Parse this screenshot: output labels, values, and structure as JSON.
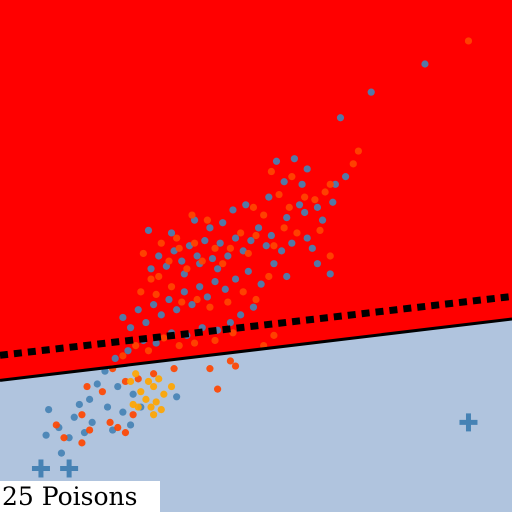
{
  "caption": "25 Poisons",
  "colors": {
    "region_positive": "#ff0000",
    "region_negative": "#b0c4de",
    "class_blue": "#4682b4",
    "class_orange": "#ff4500",
    "class_gold": "#ffa500",
    "boundary_clean": "#000000",
    "boundary_poisoned": "#000000"
  },
  "chart_data": {
    "type": "scatter",
    "title": "",
    "xlabel": "",
    "ylabel": "",
    "xlim": [
      0,
      10
    ],
    "ylim": [
      0,
      10
    ],
    "grid": false,
    "legend": "none",
    "regions": [
      {
        "label": "upper",
        "color_key": "region_positive"
      },
      {
        "label": "lower",
        "color_key": "region_negative"
      }
    ],
    "boundaries": [
      {
        "style": "solid",
        "y_at_xmin": 2.57,
        "y_at_xmax": 3.77
      },
      {
        "style": "dashed",
        "y_at_xmin": 3.06,
        "y_at_xmax": 4.21
      }
    ],
    "series": [
      {
        "color_key": "class_blue",
        "marker": "circle",
        "points": [
          [
            8.3,
            8.75
          ],
          [
            7.25,
            8.2
          ],
          [
            6.65,
            7.7
          ],
          [
            5.9,
            6.4
          ],
          [
            6.75,
            6.55
          ],
          [
            6.5,
            6.05
          ],
          [
            5.4,
            6.85
          ],
          [
            5.85,
            6.0
          ],
          [
            6.2,
            5.95
          ],
          [
            6.3,
            5.7
          ],
          [
            5.6,
            5.75
          ],
          [
            6.0,
            5.35
          ],
          [
            5.7,
            5.25
          ],
          [
            6.1,
            5.15
          ],
          [
            5.3,
            5.4
          ],
          [
            5.5,
            5.1
          ],
          [
            5.2,
            5.2
          ],
          [
            5.05,
            5.55
          ],
          [
            4.9,
            5.3
          ],
          [
            4.75,
            5.1
          ],
          [
            4.6,
            5.35
          ],
          [
            4.45,
            5.0
          ],
          [
            4.3,
            5.25
          ],
          [
            4.15,
            4.95
          ],
          [
            4.0,
            5.3
          ],
          [
            3.85,
            5.0
          ],
          [
            3.7,
            5.2
          ],
          [
            3.55,
            4.9
          ],
          [
            3.4,
            5.1
          ],
          [
            3.25,
            4.8
          ],
          [
            3.1,
            5.0
          ],
          [
            2.95,
            4.75
          ],
          [
            4.85,
            4.7
          ],
          [
            4.6,
            4.55
          ],
          [
            4.4,
            4.35
          ],
          [
            4.2,
            4.5
          ],
          [
            4.05,
            4.2
          ],
          [
            3.9,
            4.4
          ],
          [
            3.75,
            4.05
          ],
          [
            3.6,
            4.3
          ],
          [
            3.45,
            3.95
          ],
          [
            3.3,
            4.15
          ],
          [
            3.15,
            3.85
          ],
          [
            3.0,
            4.05
          ],
          [
            2.85,
            3.7
          ],
          [
            2.7,
            3.95
          ],
          [
            2.55,
            3.6
          ],
          [
            2.4,
            3.8
          ],
          [
            5.35,
            4.85
          ],
          [
            5.6,
            4.6
          ],
          [
            5.1,
            4.45
          ],
          [
            4.95,
            4.0
          ],
          [
            4.7,
            3.85
          ],
          [
            4.5,
            3.7
          ],
          [
            4.25,
            3.55
          ],
          [
            3.95,
            3.6
          ],
          [
            3.65,
            3.45
          ],
          [
            3.35,
            3.5
          ],
          [
            3.05,
            3.3
          ],
          [
            2.8,
            3.35
          ],
          [
            2.5,
            3.15
          ],
          [
            2.25,
            3.0
          ],
          [
            2.05,
            2.75
          ],
          [
            1.9,
            2.5
          ],
          [
            2.3,
            2.45
          ],
          [
            2.6,
            2.3
          ],
          [
            1.75,
            2.2
          ],
          [
            2.1,
            2.05
          ],
          [
            1.55,
            2.1
          ],
          [
            1.45,
            1.85
          ],
          [
            1.8,
            1.75
          ],
          [
            2.4,
            1.95
          ],
          [
            2.75,
            2.05
          ],
          [
            3.45,
            2.25
          ],
          [
            1.15,
            1.65
          ],
          [
            1.35,
            1.45
          ],
          [
            0.9,
            1.5
          ],
          [
            1.65,
            1.55
          ],
          [
            2.2,
            1.6
          ],
          [
            2.55,
            1.7
          ],
          [
            0.95,
            2.0
          ],
          [
            1.2,
            1.15
          ],
          [
            6.45,
            4.65
          ],
          [
            6.2,
            4.85
          ],
          [
            5.95,
            5.85
          ],
          [
            6.55,
            6.4
          ],
          [
            6.0,
            6.7
          ],
          [
            5.75,
            6.9
          ],
          [
            4.35,
            5.65
          ],
          [
            4.1,
            5.55
          ],
          [
            3.8,
            5.7
          ],
          [
            3.35,
            5.45
          ],
          [
            2.9,
            5.5
          ],
          [
            5.25,
            6.15
          ],
          [
            5.55,
            6.45
          ],
          [
            4.8,
            6.0
          ],
          [
            4.55,
            5.9
          ],
          [
            3.6,
            4.65
          ],
          [
            3.9,
            4.85
          ],
          [
            4.25,
            4.75
          ]
        ]
      },
      {
        "color_key": "class_orange",
        "marker": "circle",
        "points": [
          [
            9.15,
            9.2
          ],
          [
            7.0,
            7.05
          ],
          [
            6.35,
            6.25
          ],
          [
            6.45,
            6.4
          ],
          [
            5.95,
            6.15
          ],
          [
            6.25,
            5.5
          ],
          [
            5.65,
            5.95
          ],
          [
            5.8,
            5.45
          ],
          [
            5.45,
            6.2
          ],
          [
            5.15,
            5.8
          ],
          [
            5.55,
            5.55
          ],
          [
            5.35,
            5.2
          ],
          [
            5.0,
            5.4
          ],
          [
            4.85,
            5.05
          ],
          [
            4.7,
            5.45
          ],
          [
            4.5,
            5.15
          ],
          [
            4.35,
            4.85
          ],
          [
            4.2,
            5.15
          ],
          [
            3.95,
            4.9
          ],
          [
            3.8,
            5.25
          ],
          [
            3.65,
            4.75
          ],
          [
            3.5,
            5.15
          ],
          [
            3.3,
            4.9
          ],
          [
            3.15,
            5.25
          ],
          [
            2.95,
            4.55
          ],
          [
            2.8,
            5.05
          ],
          [
            2.75,
            4.3
          ],
          [
            3.05,
            4.25
          ],
          [
            3.35,
            4.4
          ],
          [
            3.55,
            4.1
          ],
          [
            3.85,
            4.15
          ],
          [
            4.1,
            4.0
          ],
          [
            4.45,
            4.1
          ],
          [
            4.75,
            4.3
          ],
          [
            5.0,
            4.15
          ],
          [
            5.25,
            4.6
          ],
          [
            4.55,
            3.5
          ],
          [
            4.2,
            3.35
          ],
          [
            3.8,
            3.3
          ],
          [
            3.5,
            3.25
          ],
          [
            3.2,
            3.4
          ],
          [
            2.9,
            3.15
          ],
          [
            2.65,
            3.25
          ],
          [
            2.4,
            3.05
          ],
          [
            2.2,
            2.8
          ],
          [
            2.45,
            2.55
          ],
          [
            2.7,
            2.6
          ],
          [
            3.0,
            2.7
          ],
          [
            3.4,
            2.8
          ],
          [
            4.1,
            2.8
          ],
          [
            4.5,
            2.95
          ],
          [
            5.15,
            3.25
          ],
          [
            2.0,
            2.35
          ],
          [
            1.7,
            2.45
          ],
          [
            1.6,
            1.9
          ],
          [
            2.15,
            1.75
          ],
          [
            2.45,
            1.55
          ],
          [
            2.6,
            1.9
          ],
          [
            1.25,
            1.45
          ],
          [
            1.1,
            1.7
          ],
          [
            1.75,
            1.6
          ],
          [
            2.3,
            1.65
          ],
          [
            1.6,
            1.35
          ],
          [
            4.25,
            2.4
          ],
          [
            4.6,
            2.85
          ],
          [
            5.35,
            3.45
          ],
          [
            6.45,
            5.0
          ],
          [
            6.15,
            6.1
          ],
          [
            6.9,
            6.8
          ],
          [
            5.7,
            6.55
          ],
          [
            5.3,
            6.65
          ],
          [
            4.95,
            5.95
          ],
          [
            4.05,
            5.7
          ],
          [
            3.75,
            5.8
          ],
          [
            3.45,
            5.35
          ],
          [
            3.1,
            4.6
          ]
        ]
      },
      {
        "color_key": "class_gold",
        "marker": "circle",
        "points": [
          [
            2.65,
            2.7
          ],
          [
            2.9,
            2.55
          ],
          [
            3.1,
            2.6
          ],
          [
            2.55,
            2.55
          ],
          [
            3.0,
            2.45
          ],
          [
            2.75,
            2.35
          ],
          [
            3.2,
            2.3
          ],
          [
            2.85,
            2.2
          ],
          [
            3.05,
            2.15
          ],
          [
            2.95,
            2.05
          ],
          [
            3.35,
            2.45
          ],
          [
            2.7,
            2.05
          ],
          [
            3.15,
            2.0
          ],
          [
            3.0,
            1.9
          ],
          [
            2.6,
            2.1
          ]
        ]
      },
      {
        "color_key": "class_blue",
        "marker": "plus",
        "points": [
          [
            0.8,
            0.85
          ],
          [
            1.35,
            0.85
          ],
          [
            9.15,
            1.75
          ]
        ]
      }
    ]
  }
}
